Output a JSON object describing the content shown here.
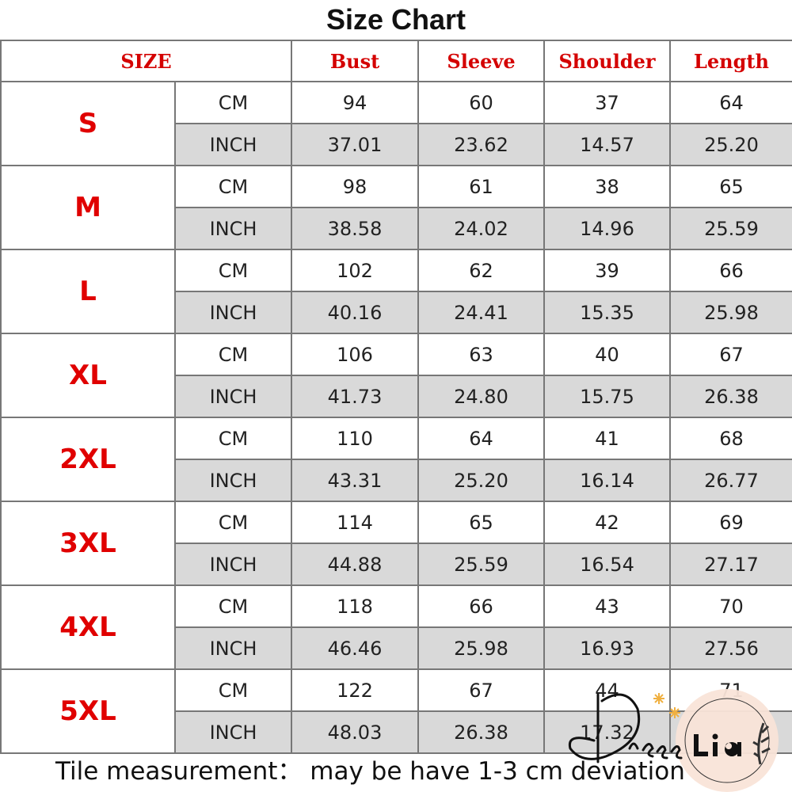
{
  "title": "Size Chart",
  "headers": [
    "SIZE",
    "Bust",
    "Sleeve",
    "Shoulder",
    "Length"
  ],
  "units": [
    "CM",
    "INCH"
  ],
  "rows": [
    {
      "size": "S",
      "cm": [
        "94",
        "60",
        "37",
        "64"
      ],
      "inch": [
        "37.01",
        "23.62",
        "14.57",
        "25.20"
      ]
    },
    {
      "size": "M",
      "cm": [
        "98",
        "61",
        "38",
        "65"
      ],
      "inch": [
        "38.58",
        "24.02",
        "14.96",
        "25.59"
      ]
    },
    {
      "size": "L",
      "cm": [
        "102",
        "62",
        "39",
        "66"
      ],
      "inch": [
        "40.16",
        "24.41",
        "15.35",
        "25.98"
      ]
    },
    {
      "size": "XL",
      "cm": [
        "106",
        "63",
        "40",
        "67"
      ],
      "inch": [
        "41.73",
        "24.80",
        "15.75",
        "26.38"
      ]
    },
    {
      "size": "2XL",
      "cm": [
        "110",
        "64",
        "41",
        "68"
      ],
      "inch": [
        "43.31",
        "25.20",
        "16.14",
        "26.77"
      ]
    },
    {
      "size": "3XL",
      "cm": [
        "114",
        "65",
        "42",
        "69"
      ],
      "inch": [
        "44.88",
        "25.59",
        "16.54",
        "27.17"
      ]
    },
    {
      "size": "4XL",
      "cm": [
        "118",
        "66",
        "43",
        "70"
      ],
      "inch": [
        "46.46",
        "25.98",
        "16.93",
        "27.56"
      ]
    },
    {
      "size": "5XL",
      "cm": [
        "122",
        "67",
        "44",
        "71"
      ],
      "inch": [
        "48.03",
        "26.38",
        "17.32",
        ""
      ]
    }
  ],
  "footer": "Tile measurement： may be have 1-3 cm deviation",
  "logo": {
    "text_script": "Dress",
    "text_bold": "Lia"
  },
  "colors": {
    "header_red": "#d40000",
    "size_red": "#e00000",
    "inch_row_bg": "#d9d9d9"
  }
}
